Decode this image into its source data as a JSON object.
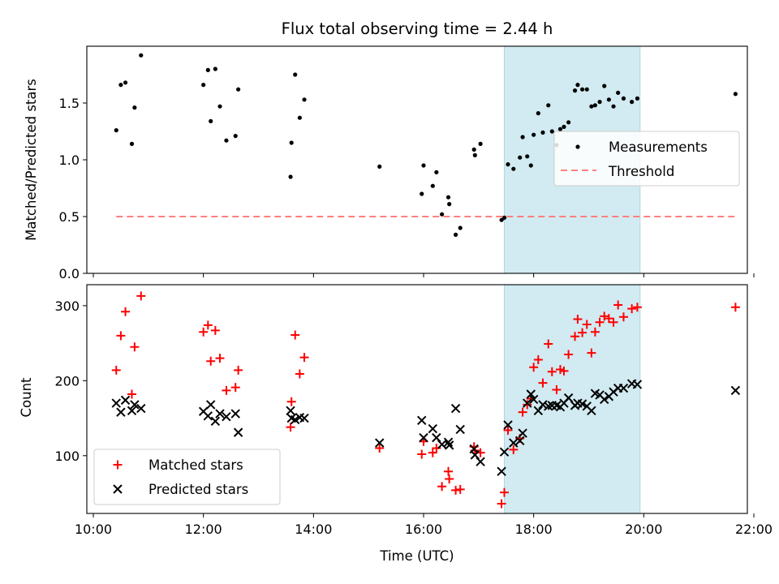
{
  "chart_data": [
    {
      "type": "scatter",
      "title": "Flux total observing time = 2.44 h",
      "xlabel": "",
      "ylabel": "Matched/Predicted stars",
      "xlim": [
        "10:00",
        "22:00"
      ],
      "ylim": [
        0.0,
        2.0
      ],
      "x_ticks": [
        "10:00",
        "12:00",
        "14:00",
        "16:00",
        "18:00",
        "20:00",
        "22:00"
      ],
      "y_ticks": [
        "0.0",
        "0.5",
        "1.0",
        "1.5"
      ],
      "highlight_span": [
        "17:28",
        "19:56"
      ],
      "highlight_color": "#add8e6",
      "legend_position": "center-right",
      "series": [
        {
          "name": "Measurements",
          "kind": "points",
          "color": "#000000",
          "points": [
            [
              "10:25",
              1.26
            ],
            [
              "10:30",
              1.66
            ],
            [
              "10:35",
              1.68
            ],
            [
              "10:42",
              1.14
            ],
            [
              "10:45",
              1.46
            ],
            [
              "10:52",
              1.92
            ],
            [
              "12:00",
              1.66
            ],
            [
              "12:05",
              1.79
            ],
            [
              "12:08",
              1.34
            ],
            [
              "12:13",
              1.8
            ],
            [
              "12:18",
              1.47
            ],
            [
              "12:25",
              1.17
            ],
            [
              "12:35",
              1.21
            ],
            [
              "12:38",
              1.62
            ],
            [
              "13:35",
              0.85
            ],
            [
              "13:36",
              1.15
            ],
            [
              "13:40",
              1.75
            ],
            [
              "13:45",
              1.37
            ],
            [
              "13:50",
              1.53
            ],
            [
              "15:12",
              0.94
            ],
            [
              "15:58",
              0.7
            ],
            [
              "16:00",
              0.95
            ],
            [
              "16:10",
              0.77
            ],
            [
              "16:14",
              0.89
            ],
            [
              "16:20",
              0.52
            ],
            [
              "16:27",
              0.67
            ],
            [
              "16:28",
              0.61
            ],
            [
              "16:35",
              0.34
            ],
            [
              "16:40",
              0.4
            ],
            [
              "16:55",
              1.09
            ],
            [
              "16:56",
              1.04
            ],
            [
              "17:02",
              1.14
            ],
            [
              "17:25",
              0.47
            ],
            [
              "17:28",
              0.49
            ],
            [
              "17:32",
              0.96
            ],
            [
              "17:38",
              0.92
            ],
            [
              "17:45",
              1.02
            ],
            [
              "17:48",
              1.2
            ],
            [
              "17:53",
              1.03
            ],
            [
              "17:57",
              0.95
            ],
            [
              "18:00",
              1.22
            ],
            [
              "18:05",
              1.41
            ],
            [
              "18:10",
              1.24
            ],
            [
              "18:16",
              1.48
            ],
            [
              "18:20",
              1.25
            ],
            [
              "18:25",
              1.13
            ],
            [
              "18:29",
              1.27
            ],
            [
              "18:33",
              1.29
            ],
            [
              "18:38",
              1.33
            ],
            [
              "18:45",
              1.61
            ],
            [
              "18:48",
              1.66
            ],
            [
              "18:53",
              1.62
            ],
            [
              "18:58",
              1.62
            ],
            [
              "19:03",
              1.47
            ],
            [
              "19:07",
              1.48
            ],
            [
              "19:12",
              1.51
            ],
            [
              "19:17",
              1.65
            ],
            [
              "19:22",
              1.53
            ],
            [
              "19:27",
              1.47
            ],
            [
              "19:32",
              1.59
            ],
            [
              "19:38",
              1.54
            ],
            [
              "19:47",
              1.51
            ],
            [
              "19:53",
              1.54
            ],
            [
              "21:40",
              1.58
            ]
          ]
        },
        {
          "name": "Threshold",
          "kind": "dashed-line",
          "color": "#ff7f7f",
          "points": [
            [
              "10:25",
              0.5
            ],
            [
              "21:40",
              0.5
            ]
          ]
        }
      ]
    },
    {
      "type": "scatter",
      "title": "",
      "xlabel": "Time (UTC)",
      "ylabel": "Count",
      "xlim": [
        "10:00",
        "22:00"
      ],
      "ylim": [
        23,
        328
      ],
      "x_ticks": [
        "10:00",
        "12:00",
        "14:00",
        "16:00",
        "18:00",
        "20:00",
        "22:00"
      ],
      "y_ticks": [
        "100",
        "200",
        "300"
      ],
      "highlight_span": [
        "17:28",
        "19:56"
      ],
      "highlight_color": "#add8e6",
      "legend_position": "lower-left",
      "series": [
        {
          "name": "Matched stars",
          "marker": "plus",
          "color": "#ff0000",
          "points": [
            [
              "10:25",
              214
            ],
            [
              "10:30",
              260
            ],
            [
              "10:35",
              292
            ],
            [
              "10:42",
              182
            ],
            [
              "10:45",
              245
            ],
            [
              "10:52",
              313
            ],
            [
              "12:00",
              265
            ],
            [
              "12:05",
              274
            ],
            [
              "12:08",
              226
            ],
            [
              "12:13",
              267
            ],
            [
              "12:18",
              230
            ],
            [
              "12:25",
              187
            ],
            [
              "12:35",
              191
            ],
            [
              "12:38",
              214
            ],
            [
              "13:35",
              138
            ],
            [
              "13:36",
              172
            ],
            [
              "13:40",
              261
            ],
            [
              "13:45",
              209
            ],
            [
              "13:50",
              231
            ],
            [
              "15:12",
              110
            ],
            [
              "15:58",
              102
            ],
            [
              "16:00",
              119
            ],
            [
              "16:10",
              104
            ],
            [
              "16:14",
              110
            ],
            [
              "16:20",
              59
            ],
            [
              "16:27",
              79
            ],
            [
              "16:28",
              69
            ],
            [
              "16:35",
              54
            ],
            [
              "16:40",
              55
            ],
            [
              "16:55",
              112
            ],
            [
              "16:56",
              107
            ],
            [
              "17:02",
              104
            ],
            [
              "17:25",
              36
            ],
            [
              "17:28",
              51
            ],
            [
              "17:32",
              134
            ],
            [
              "17:38",
              108
            ],
            [
              "17:45",
              123
            ],
            [
              "17:48",
              158
            ],
            [
              "17:53",
              168
            ],
            [
              "17:57",
              176
            ],
            [
              "18:00",
              218
            ],
            [
              "18:05",
              228
            ],
            [
              "18:10",
              197
            ],
            [
              "18:16",
              249
            ],
            [
              "18:20",
              212
            ],
            [
              "18:25",
              188
            ],
            [
              "18:29",
              215
            ],
            [
              "18:33",
              213
            ],
            [
              "18:38",
              235
            ],
            [
              "18:45",
              259
            ],
            [
              "18:48",
              282
            ],
            [
              "18:53",
              264
            ],
            [
              "18:58",
              275
            ],
            [
              "19:03",
              237
            ],
            [
              "19:07",
              265
            ],
            [
              "19:12",
              278
            ],
            [
              "19:17",
              286
            ],
            [
              "19:22",
              283
            ],
            [
              "19:27",
              278
            ],
            [
              "19:32",
              301
            ],
            [
              "19:38",
              285
            ],
            [
              "19:47",
              296
            ],
            [
              "19:53",
              298
            ],
            [
              "21:40",
              298
            ]
          ]
        },
        {
          "name": "Predicted stars",
          "marker": "x",
          "color": "#000000",
          "points": [
            [
              "10:25",
              170
            ],
            [
              "10:30",
              158
            ],
            [
              "10:35",
              174
            ],
            [
              "10:42",
              160
            ],
            [
              "10:45",
              168
            ],
            [
              "10:52",
              163
            ],
            [
              "12:00",
              159
            ],
            [
              "12:05",
              153
            ],
            [
              "12:08",
              168
            ],
            [
              "12:13",
              146
            ],
            [
              "12:18",
              156
            ],
            [
              "12:25",
              152
            ],
            [
              "12:35",
              156
            ],
            [
              "12:38",
              131
            ],
            [
              "13:35",
              160
            ],
            [
              "13:36",
              150
            ],
            [
              "13:40",
              148
            ],
            [
              "13:45",
              151
            ],
            [
              "13:50",
              150
            ],
            [
              "15:12",
              117
            ],
            [
              "15:58",
              147
            ],
            [
              "16:00",
              124
            ],
            [
              "16:10",
              136
            ],
            [
              "16:14",
              124
            ],
            [
              "16:20",
              115
            ],
            [
              "16:27",
              118
            ],
            [
              "16:28",
              114
            ],
            [
              "16:35",
              163
            ],
            [
              "16:40",
              135
            ],
            [
              "16:55",
              109
            ],
            [
              "16:56",
              101
            ],
            [
              "17:02",
              92
            ],
            [
              "17:25",
              79
            ],
            [
              "17:28",
              105
            ],
            [
              "17:32",
              141
            ],
            [
              "17:38",
              117
            ],
            [
              "17:45",
              120
            ],
            [
              "17:48",
              130
            ],
            [
              "17:53",
              170
            ],
            [
              "17:57",
              182
            ],
            [
              "18:00",
              175
            ],
            [
              "18:05",
              160
            ],
            [
              "18:10",
              168
            ],
            [
              "18:16",
              166
            ],
            [
              "18:20",
              167
            ],
            [
              "18:25",
              167
            ],
            [
              "18:29",
              165
            ],
            [
              "18:33",
              170
            ],
            [
              "18:38",
              177
            ],
            [
              "18:45",
              167
            ],
            [
              "18:48",
              170
            ],
            [
              "18:53",
              169
            ],
            [
              "18:58",
              166
            ],
            [
              "19:03",
              160
            ],
            [
              "19:07",
              183
            ],
            [
              "19:12",
              181
            ],
            [
              "19:17",
              175
            ],
            [
              "19:22",
              179
            ],
            [
              "19:27",
              185
            ],
            [
              "19:32",
              190
            ],
            [
              "19:38",
              190
            ],
            [
              "19:47",
              196
            ],
            [
              "19:53",
              195
            ],
            [
              "21:40",
              187
            ]
          ]
        }
      ]
    }
  ]
}
